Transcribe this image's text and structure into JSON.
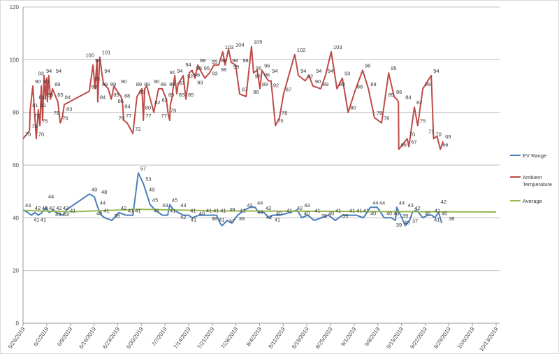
{
  "chart_data": {
    "type": "line",
    "title": "",
    "xlabel": "",
    "ylabel": "",
    "ylim": [
      0,
      120
    ],
    "yticks": [
      "0",
      "20",
      "40",
      "60",
      "80",
      "100",
      "120"
    ],
    "x_unit": "days since 5/26/2019",
    "xlim": [
      0,
      140
    ],
    "xtick_labels": [
      "5/26/2019",
      "6/2/2019",
      "6/9/2019",
      "6/16/2019",
      "6/23/2019",
      "6/30/2019",
      "7/7/2019",
      "7/14/2019",
      "7/21/2019",
      "7/28/2019",
      "8/4/2019",
      "8/11/2019",
      "8/18/2019",
      "8/25/2019",
      "9/1/2019",
      "9/8/2019",
      "9/15/2019",
      "9/22/2019",
      "9/29/2019",
      "10/6/2019",
      "10/13/2019"
    ],
    "grid": "horizontal",
    "legend_position": "right",
    "series": [
      {
        "name": "EV Range",
        "color": "#4a7ebb",
        "data_labels": true,
        "x": [
          0,
          1.4,
          2.5,
          3.5,
          4.5,
          5.6,
          6.8,
          7.7,
          8.9,
          9.7,
          11.8,
          12.8,
          19.6,
          21.1,
          22.1,
          23.2,
          24.2,
          26.3,
          28.3,
          30.4,
          32.5,
          34.1,
          35.6,
          36.6,
          37.6,
          39.1,
          41.2,
          42.8,
          43.4,
          44.5,
          45.9,
          47.4,
          49.0,
          50.0,
          52.1,
          54.2,
          56.3,
          57.3,
          58.3,
          58.9,
          60.4,
          61.8,
          63.5,
          65.6,
          67.2,
          68.7,
          69.7,
          71.3,
          72.8,
          73.8,
          75.9,
          79.0,
          81.1,
          82.5,
          84.2,
          86.2,
          88.3,
          90.4,
          92.4,
          94.5,
          96.6,
          98.6,
          100.7,
          102.8,
          104.8,
          106.9,
          109.0,
          110.2,
          110.6,
          112.1,
          113.1,
          114.4,
          115.2,
          116.4,
          118.3,
          119.7,
          121.0,
          121.8,
          123.0,
          123.9
        ],
        "y": [
          43,
          42,
          41,
          42,
          41,
          42,
          44,
          42,
          43,
          42,
          41,
          43,
          49,
          48,
          44,
          41,
          40,
          39,
          42,
          41,
          41,
          57,
          53,
          49,
          45,
          43,
          41,
          41,
          45,
          43,
          42,
          41,
          41,
          40,
          41,
          41,
          41,
          41,
          38,
          37,
          39,
          38,
          41,
          43,
          44,
          44,
          42,
          42,
          40,
          41,
          41,
          42,
          43,
          40,
          41,
          39,
          40,
          41,
          39,
          41,
          41,
          41,
          40,
          44,
          44,
          40,
          40,
          39,
          44,
          40,
          37,
          39,
          42,
          43,
          40,
          41,
          41,
          40,
          42,
          38
        ]
      },
      {
        "name": "Ambient Temperature",
        "color": "#be4b48",
        "data_labels": true,
        "x": [
          0,
          1.9,
          2.1,
          2.9,
          3.9,
          4.5,
          5.0,
          5.4,
          5.8,
          6.2,
          6.6,
          7.0,
          7.2,
          7.6,
          8.1,
          8.7,
          10.3,
          11.0,
          11.6,
          12.2,
          19.6,
          20.7,
          21.3,
          21.9,
          22.1,
          22.7,
          23.4,
          23.8,
          25.2,
          26.1,
          26.9,
          27.9,
          29.0,
          29.4,
          29.8,
          30.8,
          32.5,
          33.7,
          35.2,
          35.6,
          36.0,
          36.6,
          38.3,
          38.7,
          40.1,
          41.2,
          42.4,
          43.0,
          43.4,
          43.6,
          44.0,
          44.9,
          45.5,
          45.9,
          46.5,
          47.4,
          48.2,
          49.2,
          50.0,
          50.9,
          51.7,
          52.9,
          53.8,
          55.2,
          56.5,
          57.9,
          59.1,
          59.8,
          60.8,
          61.6,
          62.9,
          64.1,
          66.0,
          67.6,
          68.2,
          69.3,
          70.1,
          70.7,
          71.6,
          72.6,
          73.4,
          74.7,
          75.9,
          77.1,
          80.4,
          81.5,
          83.5,
          84.6,
          85.8,
          88.1,
          89.5,
          91.2,
          92.9,
          94.5,
          96.2,
          98.2,
          100.5,
          102.2,
          104.0,
          106.1,
          108.2,
          109.8,
          110.6,
          111.1,
          111.2,
          113.7,
          114.2,
          115.8,
          116.8,
          118.3,
          120.8,
          121.5,
          122.5,
          123.5,
          124.3
        ],
        "y": [
          70,
          73,
          81,
          90,
          70,
          81,
          75,
          90,
          77,
          94,
          85,
          93,
          84,
          94,
          85,
          89,
          84,
          76,
          78,
          83,
          88,
          98,
          89,
          100,
          84,
          101,
          94,
          91,
          89,
          85,
          90,
          88,
          86,
          84,
          77,
          76,
          72,
          86,
          89,
          77,
          89,
          90,
          82,
          80,
          89,
          89,
          85,
          79,
          77,
          83,
          85,
          94,
          87,
          91,
          92,
          94,
          85,
          95,
          96,
          93,
          98,
          95,
          93,
          95,
          98,
          98,
          103,
          98,
          104,
          99,
          98,
          87,
          86,
          105,
          95,
          96,
          89,
          96,
          94,
          92,
          92,
          75,
          78,
          87,
          102,
          94,
          92,
          94,
          90,
          89,
          94,
          103,
          89,
          93,
          80,
          88,
          96,
          89,
          78,
          76,
          95,
          86,
          85,
          84,
          66,
          70,
          67,
          82,
          75,
          89,
          94,
          70,
          71,
          66,
          69
        ]
      },
      {
        "name": "Average",
        "color": "#98b954",
        "data_labels": false,
        "x": [
          0,
          14,
          25,
          35,
          60,
          140
        ],
        "y": [
          42.8,
          42.3,
          42.8,
          43.2,
          42.6,
          42.2
        ]
      }
    ]
  }
}
